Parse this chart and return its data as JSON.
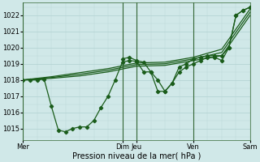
{
  "background_color": "#d0e8e8",
  "grid_color": "#b0d0d0",
  "line_color": "#1a5c1a",
  "marker_color": "#1a5c1a",
  "xlabel": "Pression niveau de la mer( hPa )",
  "ylim": [
    1014.3,
    1022.8
  ],
  "yticks": [
    1015,
    1016,
    1017,
    1018,
    1019,
    1020,
    1021,
    1022
  ],
  "day_labels": [
    "Mer",
    "Dim",
    "Jeu",
    "Ven",
    "Sam"
  ],
  "day_positions": [
    0,
    84,
    96,
    144,
    192
  ],
  "xlim": [
    0,
    192
  ],
  "series": [
    {
      "x": [
        0,
        6,
        12,
        18,
        24,
        30,
        36,
        42,
        48,
        54,
        60,
        66,
        72,
        78,
        84,
        90,
        96,
        102,
        108,
        114,
        120,
        126,
        132,
        138,
        144,
        150,
        156,
        162,
        168,
        174,
        180,
        186,
        192
      ],
      "y": [
        1018.0,
        1018.0,
        1018.0,
        1018.05,
        1016.4,
        1014.9,
        1014.8,
        1015.0,
        1015.1,
        1015.1,
        1015.5,
        1016.3,
        1017.0,
        1018.0,
        1019.1,
        1019.2,
        1019.15,
        1018.5,
        1018.5,
        1018.0,
        1017.3,
        1017.8,
        1018.8,
        1019.0,
        1019.3,
        1019.4,
        1019.5,
        1019.5,
        1019.5,
        1020.0,
        1022.0,
        1022.3,
        1022.5
      ],
      "marker": true
    },
    {
      "x": [
        0,
        24,
        48,
        72,
        96,
        120,
        144,
        168,
        192
      ],
      "y": [
        1018.0,
        1018.1,
        1018.25,
        1018.5,
        1018.85,
        1018.9,
        1019.2,
        1019.5,
        1022.0
      ],
      "marker": false
    },
    {
      "x": [
        0,
        24,
        48,
        72,
        96,
        120,
        144,
        168,
        192
      ],
      "y": [
        1018.0,
        1018.15,
        1018.35,
        1018.6,
        1018.95,
        1019.0,
        1019.3,
        1019.7,
        1022.2
      ],
      "marker": false
    },
    {
      "x": [
        0,
        24,
        48,
        72,
        96,
        120,
        144,
        168,
        192
      ],
      "y": [
        1018.0,
        1018.2,
        1018.45,
        1018.7,
        1019.05,
        1019.1,
        1019.4,
        1019.9,
        1022.4
      ],
      "marker": false
    },
    {
      "x": [
        84,
        90,
        96,
        102,
        108,
        114,
        120,
        126,
        132,
        138,
        144,
        150,
        156,
        162,
        168,
        174,
        180,
        186,
        192
      ],
      "y": [
        1019.3,
        1019.4,
        1019.2,
        1019.1,
        1018.5,
        1017.3,
        1017.3,
        1017.8,
        1018.5,
        1018.8,
        1019.0,
        1019.2,
        1019.4,
        1019.4,
        1019.2,
        1020.0,
        1022.0,
        1022.3,
        1022.5
      ],
      "marker": true
    }
  ],
  "vline_positions": [
    0,
    84,
    96,
    144,
    192
  ],
  "vline_color": "#336633"
}
